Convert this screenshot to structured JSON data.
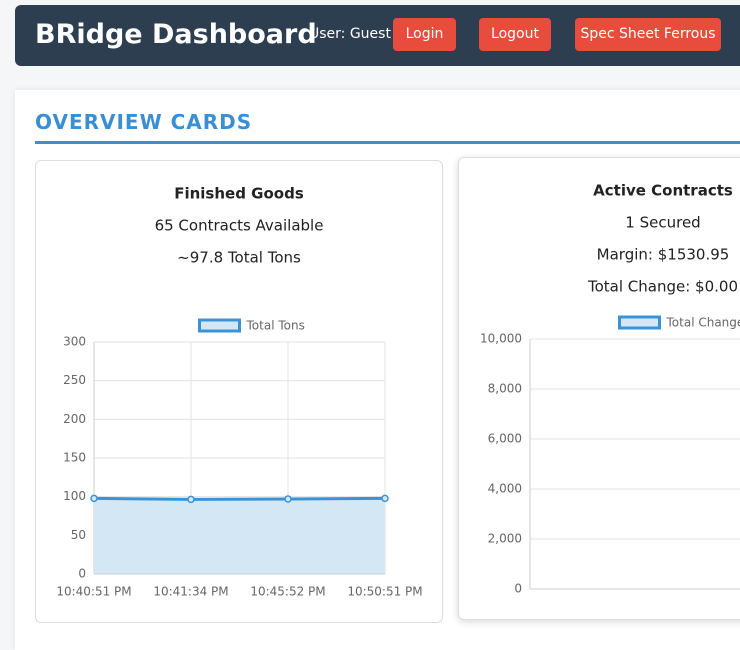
{
  "header": {
    "title": "BRidge Dashboard",
    "user": "User: Guest",
    "buttons": [
      "Login",
      "Logout",
      "Spec Sheet Ferrous"
    ]
  },
  "section": {
    "title": "OVERVIEW CARDS"
  },
  "cards": [
    {
      "title": "Finished Goods",
      "lines": [
        "65 Contracts Available",
        "~97.8 Total Tons"
      ],
      "chart": {
        "type": "line",
        "x": [
          "10:40:51 PM",
          "10:41:34 PM",
          "10:45:52 PM",
          "10:50:51 PM"
        ],
        "series": [
          {
            "name": "Total Tons",
            "color": "#3a93d6",
            "fill": "#d4e7f5",
            "values": [
              97.8,
              96.5,
              97,
              97.8
            ]
          }
        ],
        "ylim": [
          0,
          300
        ],
        "yticks": [
          0,
          50,
          100,
          150,
          200,
          250,
          300
        ],
        "grid": true,
        "legend": "top"
      }
    },
    {
      "title": "Active Contracts",
      "lines": [
        "1 Secured",
        "Margin: $1530.95",
        "Total Change: $0.00"
      ],
      "chart": {
        "type": "line",
        "series": [
          {
            "name": "Total Change",
            "color": "#3a93d6",
            "fill": "#d4e7f5"
          }
        ],
        "ylim": [
          0,
          10000
        ],
        "yticks": [
          0,
          {
            "value": 2000,
            "label": "2,000"
          },
          {
            "value": 4000,
            "label": "4,000"
          },
          {
            "value": 6000,
            "label": "6,000"
          },
          {
            "value": 8000,
            "label": "8,000"
          },
          {
            "value": 10000,
            "label": "10,000"
          }
        ],
        "grid": true,
        "legend": "top"
      }
    }
  ]
}
